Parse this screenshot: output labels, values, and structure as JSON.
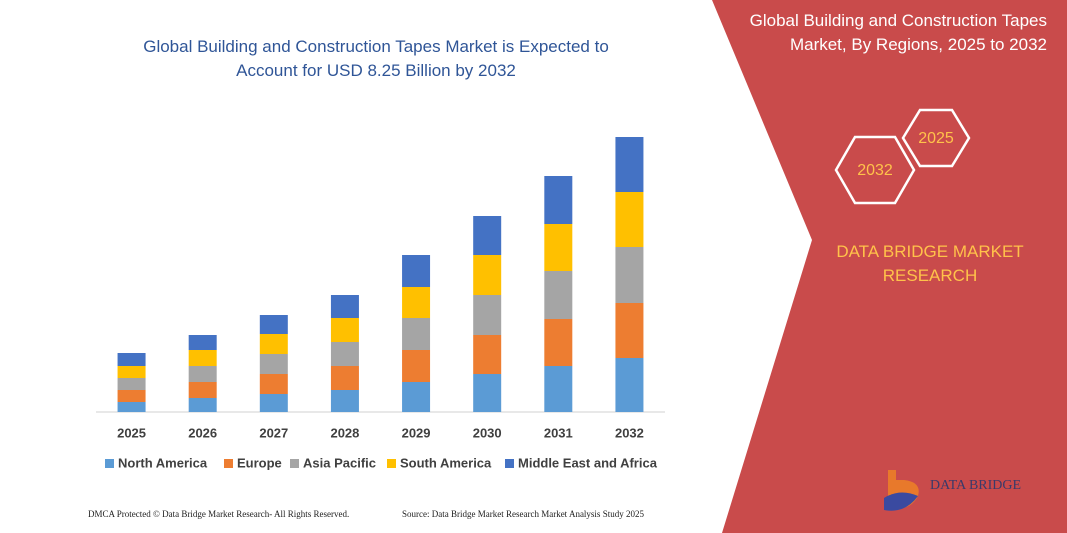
{
  "chart_data": {
    "type": "bar",
    "stacked": true,
    "title": "Global Building and Construction Tapes Market is Expected to Account for USD 8.25 Billion by 2032",
    "categories": [
      "2025",
      "2026",
      "2027",
      "2028",
      "2029",
      "2030",
      "2031",
      "2032"
    ],
    "series": [
      {
        "name": "North America",
        "color": "#5b9bd5",
        "values": [
          10,
          14,
          18,
          22,
          30,
          38,
          46,
          54
        ]
      },
      {
        "name": "Europe",
        "color": "#ed7d31",
        "values": [
          12,
          16,
          20,
          24,
          32,
          39,
          47,
          55
        ]
      },
      {
        "name": "Asia Pacific",
        "color": "#a5a5a5",
        "values": [
          12,
          16,
          20,
          24,
          32,
          40,
          48,
          56
        ]
      },
      {
        "name": "South America",
        "color": "#ffc000",
        "values": [
          12,
          16,
          20,
          24,
          31,
          40,
          47,
          55
        ]
      },
      {
        "name": "Middle East and Africa",
        "color": "#4472c4",
        "values": [
          13,
          15,
          19,
          23,
          32,
          39,
          48,
          55
        ]
      }
    ],
    "ylim": [
      0,
      280
    ],
    "grid": false,
    "legend": "bottom"
  },
  "panel": {
    "title": "Global Building and Construction Tapes Market, By Regions, 2025 to 2032",
    "hexagons": [
      "2025",
      "2032"
    ],
    "brand": "DATA BRIDGE MARKET RESEARCH",
    "logo": "DATA BRIDGE"
  },
  "footer": {
    "left": "DMCA Protected © Data Bridge Market Research- All Rights Reserved.",
    "right": "Source: Data Bridge Market Research Market Analysis Study 2025"
  }
}
